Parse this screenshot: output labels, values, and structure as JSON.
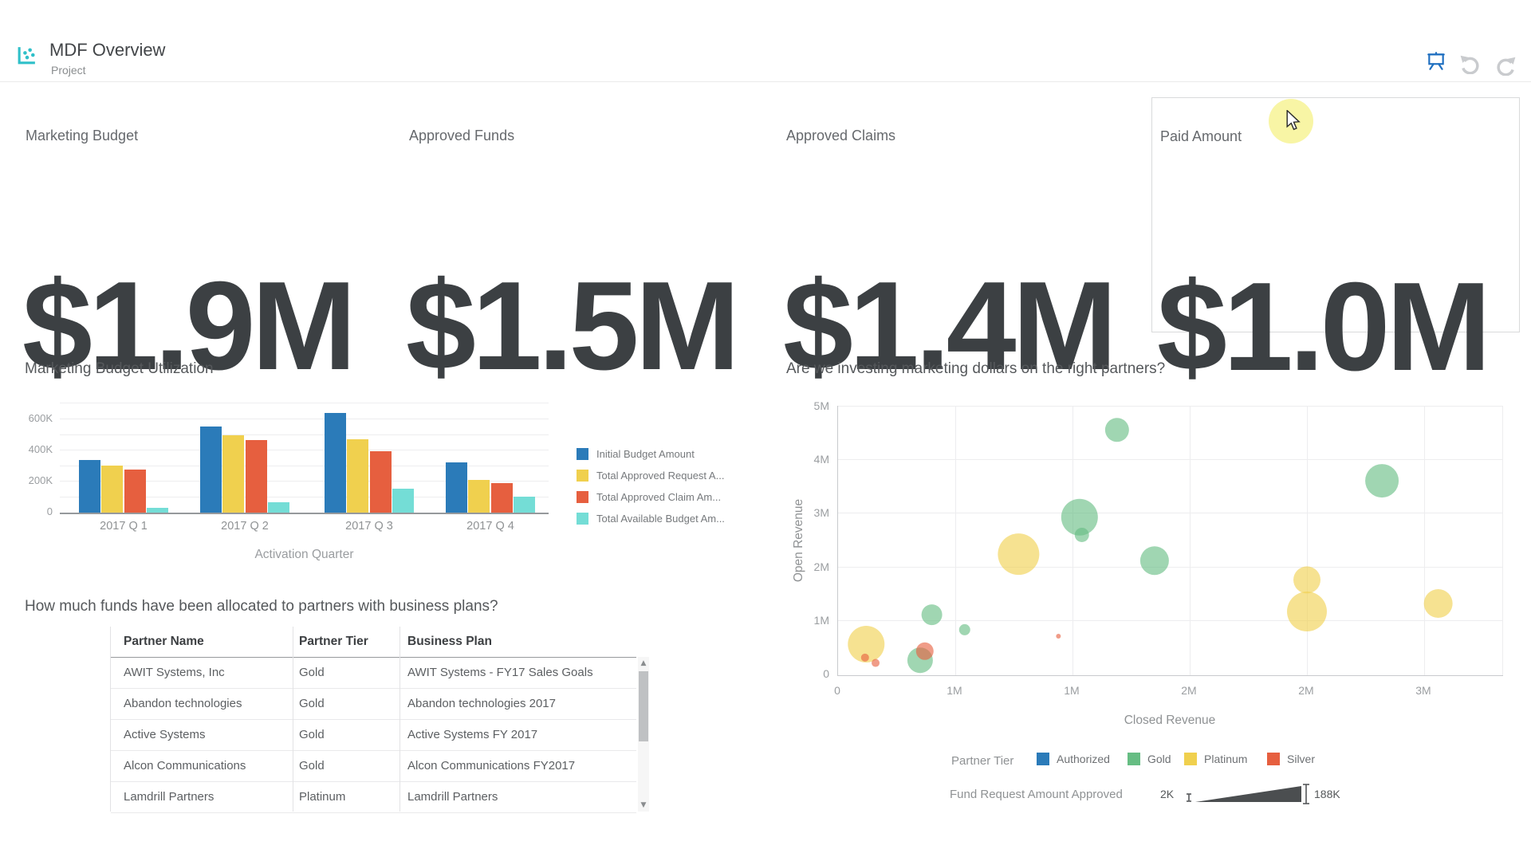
{
  "header": {
    "title": "MDF Overview",
    "subtitle": "Project",
    "icons": {
      "app": "scatter-chart-icon",
      "toolbar": [
        "presentation-icon",
        "undo-icon",
        "redo-icon"
      ]
    }
  },
  "kpis": [
    {
      "label": "Marketing Budget",
      "value": "$1.9M"
    },
    {
      "label": "Approved Funds",
      "value": "$1.5M"
    },
    {
      "label": "Approved Claims",
      "value": "$1.4M"
    },
    {
      "label": "Paid Amount",
      "value": "$1.0M",
      "highlighted": true
    }
  ],
  "chart_data": [
    {
      "id": "budget_utilization",
      "type": "bar",
      "title": "Marketing Budget Utilization",
      "xlabel": "Activation Quarter",
      "ylabel": "",
      "categories": [
        "2017 Q 1",
        "2017 Q 2",
        "2017 Q 3",
        "2017 Q 4"
      ],
      "y_ticks": [
        {
          "label": "0",
          "value": 0
        },
        {
          "label": "200K",
          "value": 200000
        },
        {
          "label": "400K",
          "value": 400000
        },
        {
          "label": "600K",
          "value": 600000
        }
      ],
      "ylim": [
        0,
        700000
      ],
      "grid": true,
      "legend_position": "right",
      "series": [
        {
          "name": "Initial Budget Amount",
          "legend_label": "Initial Budget Amount",
          "color": "#2b7bb9",
          "values": [
            340000,
            555000,
            640000,
            325000
          ]
        },
        {
          "name": "Total Approved Request Amount",
          "legend_label": "Total Approved Request A...",
          "color": "#f0d04e",
          "values": [
            305000,
            495000,
            470000,
            210000
          ]
        },
        {
          "name": "Total Approved Claim Amount",
          "legend_label": "Total Approved Claim Am...",
          "color": "#e65f3f",
          "values": [
            275000,
            465000,
            395000,
            190000
          ]
        },
        {
          "name": "Total Available Budget Amount",
          "legend_label": "Total Available Budget Am...",
          "color": "#74ddd6",
          "values": [
            30000,
            65000,
            155000,
            105000
          ]
        }
      ]
    },
    {
      "id": "partner_scatter",
      "type": "scatter",
      "title": "Are we investing marketing dollars on the right partners?",
      "xlabel": "Closed Revenue",
      "ylabel": "Open Revenue",
      "x_ticks": [
        {
          "label": "0",
          "m": 0
        },
        {
          "label": "1M",
          "m": 0.5
        },
        {
          "label": "1M",
          "m": 1.0
        },
        {
          "label": "2M",
          "m": 1.5
        },
        {
          "label": "2M",
          "m": 2.0
        },
        {
          "label": "3M",
          "m": 2.5
        }
      ],
      "y_ticks": [
        {
          "label": "0",
          "m": 0
        },
        {
          "label": "1M",
          "m": 1
        },
        {
          "label": "2M",
          "m": 2
        },
        {
          "label": "3M",
          "m": 3
        },
        {
          "label": "4M",
          "m": 4
        },
        {
          "label": "5M",
          "m": 5
        }
      ],
      "xlim_m": [
        0,
        2.85
      ],
      "ylim_m": [
        0,
        5
      ],
      "grid": true,
      "legend": {
        "title": "Partner Tier",
        "entries": [
          {
            "label": "Authorized",
            "color": "#2b7bb9"
          },
          {
            "label": "Gold",
            "color": "#66bd83"
          },
          {
            "label": "Platinum",
            "color": "#f0d04e"
          },
          {
            "label": "Silver",
            "color": "#e65f3f"
          }
        ]
      },
      "size_legend": {
        "label": "Fund Request Amount Approved",
        "min": "2K",
        "max": "188K"
      },
      "points": [
        {
          "tier": "Platinum",
          "x_m": 0.12,
          "y_m": 0.55,
          "r": 23
        },
        {
          "tier": "Platinum",
          "x_m": 0.77,
          "y_m": 2.23,
          "r": 26
        },
        {
          "tier": "Platinum",
          "x_m": 2.0,
          "y_m": 1.75,
          "r": 17
        },
        {
          "tier": "Platinum",
          "x_m": 2.0,
          "y_m": 1.16,
          "r": 25
        },
        {
          "tier": "Platinum",
          "x_m": 2.56,
          "y_m": 1.31,
          "r": 18
        },
        {
          "tier": "Silver",
          "x_m": 0.115,
          "y_m": 0.3,
          "r": 5
        },
        {
          "tier": "Silver",
          "x_m": 0.16,
          "y_m": 0.2,
          "r": 5
        },
        {
          "tier": "Silver",
          "x_m": 0.37,
          "y_m": 0.42,
          "r": 11
        },
        {
          "tier": "Silver",
          "x_m": 0.94,
          "y_m": 0.7,
          "r": 3
        },
        {
          "tier": "Gold",
          "x_m": 0.35,
          "y_m": 0.25,
          "r": 16
        },
        {
          "tier": "Gold",
          "x_m": 0.4,
          "y_m": 1.1,
          "r": 13
        },
        {
          "tier": "Gold",
          "x_m": 0.54,
          "y_m": 0.82,
          "r": 7
        },
        {
          "tier": "Gold",
          "x_m": 1.03,
          "y_m": 2.92,
          "r": 23
        },
        {
          "tier": "Gold",
          "x_m": 1.04,
          "y_m": 2.59,
          "r": 9
        },
        {
          "tier": "Gold",
          "x_m": 1.19,
          "y_m": 4.55,
          "r": 15
        },
        {
          "tier": "Gold",
          "x_m": 1.35,
          "y_m": 2.11,
          "r": 18
        },
        {
          "tier": "Gold",
          "x_m": 2.32,
          "y_m": 3.6,
          "r": 21
        }
      ]
    }
  ],
  "table": {
    "title": "How much funds have been allocated to partners with business plans?",
    "columns": [
      "Partner Name",
      "Partner Tier",
      "Business Plan"
    ],
    "rows": [
      [
        "AWIT Systems, Inc",
        "Gold",
        "AWIT Systems - FY17 Sales Goals"
      ],
      [
        "Abandon technologies",
        "Gold",
        "Abandon technologies 2017"
      ],
      [
        "Active Systems",
        "Gold",
        "Active Systems FY 2017"
      ],
      [
        "Alcon Communications",
        "Gold",
        "Alcon Communications FY2017"
      ],
      [
        "Lamdrill Partners",
        "Platinum",
        "Lamdrill Partners"
      ]
    ]
  },
  "colors": {
    "accent_cyan": "#2fc0c9",
    "toolbar_blue": "#1f6fc0",
    "cursor_highlight": "#f8f5a5",
    "kpi_value": "#3c4043",
    "wedge_dark": "#4b4e50"
  }
}
